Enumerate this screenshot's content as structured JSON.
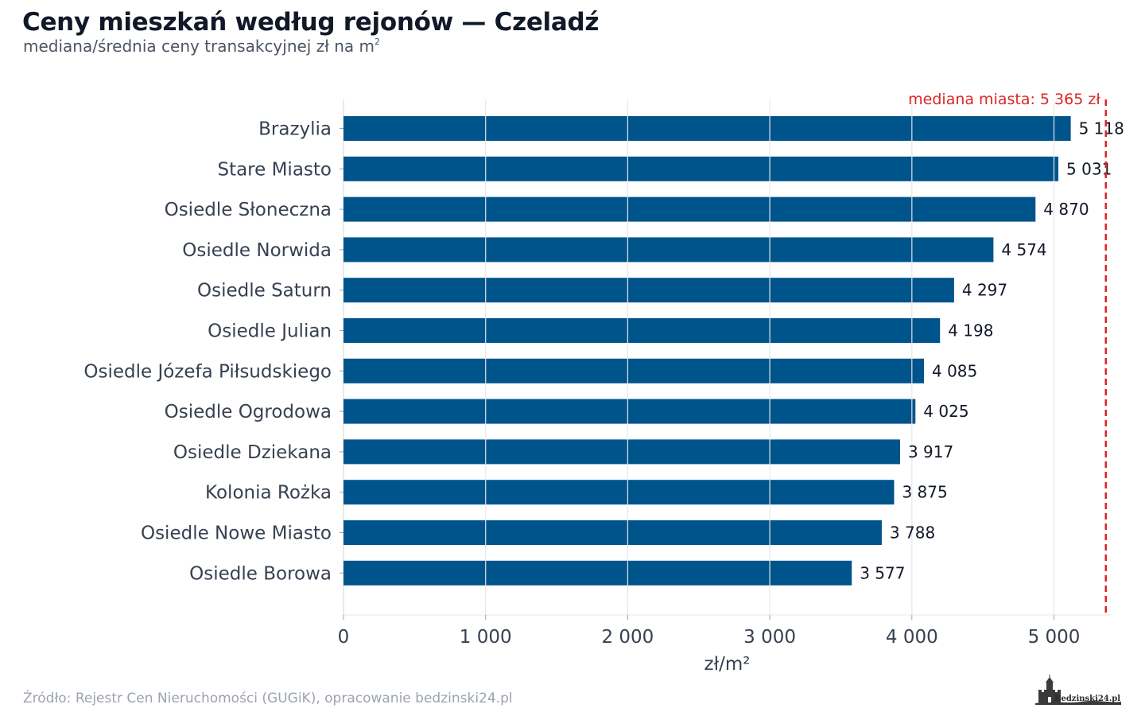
{
  "header": {
    "title": "Ceny mieszkań według rejonów — Czeladź",
    "subtitle": "mediana/średnia ceny transakcyjnej zł na m",
    "subtitle_superscript": "2"
  },
  "footer": {
    "source": "Źródło: Rejestr Cen Nieruchomości (GUGiK), opracowanie bedzinski24.pl",
    "logo_text": "Bedzinski24.pl"
  },
  "chart_data": {
    "type": "bar",
    "orientation": "horizontal",
    "categories": [
      "Brazylia",
      "Stare Miasto",
      "Osiedle Słoneczna",
      "Osiedle Norwida",
      "Osiedle Saturn",
      "Osiedle Julian",
      "Osiedle Józefa Piłsudskiego",
      "Osiedle Ogrodowa",
      "Osiedle Dziekana",
      "Kolonia Rożka",
      "Osiedle Nowe Miasto",
      "Osiedle Borowa"
    ],
    "values": [
      5118,
      5031,
      4870,
      4574,
      4297,
      4198,
      4085,
      4025,
      3917,
      3875,
      3788,
      3577
    ],
    "value_labels": [
      "5 118",
      "5 031",
      "4 870",
      "4 574",
      "4 297",
      "4 198",
      "4 085",
      "4 025",
      "3 917",
      "3 875",
      "3 788",
      "3 577"
    ],
    "xlabel": "zł/m²",
    "xlim": [
      0,
      5400
    ],
    "xticks": [
      0,
      1000,
      2000,
      3000,
      4000,
      5000
    ],
    "xtick_labels": [
      "0",
      "1 000",
      "2 000",
      "3 000",
      "4 000",
      "5 000"
    ],
    "grid": true,
    "reference_line": {
      "value": 5365,
      "label": "mediana miasta: 5 365 zł",
      "color": "#dc2626",
      "style": "dashed"
    },
    "colors": {
      "bar": "#00548c",
      "grid": "#e5e7eb",
      "category_text": "#374151",
      "value_text": "#111827"
    }
  }
}
